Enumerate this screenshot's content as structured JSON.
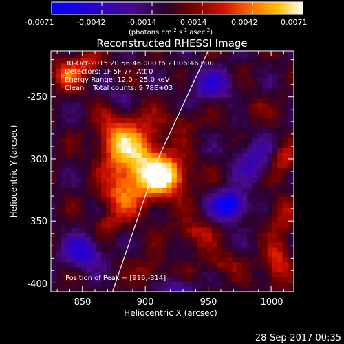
{
  "chart_data": {
    "type": "heatmap",
    "title": "Reconstructed RHESSI Image",
    "xlabel": "Heliocentric X (arcsec)",
    "ylabel": "Heliocentric Y (arcsec)",
    "xlim": [
      825,
      1018
    ],
    "ylim": [
      -407,
      -213
    ],
    "xticks": [
      850,
      900,
      950,
      1000
    ],
    "yticks": [
      -250,
      -300,
      -350,
      -400
    ],
    "colorbar": {
      "min": -0.0071,
      "max": 0.0071,
      "ticks": [
        "-0.0071",
        "-0.0042",
        "-0.0014",
        "0.0014",
        "0.0042",
        "0.0071"
      ],
      "label_main": "(photons cm",
      "label_sup1": "-2",
      "label_mid1": " s",
      "label_sup2": "-1",
      "label_mid2": " asec",
      "label_sup3": "-2",
      "label_end": ")"
    },
    "annotations": [
      "30-Oct-2015 20:56:46.000 to 21:06:46.000",
      "Detectors: 1F 5F 7F, Att 0",
      "Energy Range: 12.0 - 25.0 keV",
      "Clean    Total counts: 9.78E+03"
    ],
    "peak_label": "Position of Peak = [916,-314]",
    "peak": {
      "x": 916,
      "y": -314,
      "value": 0.0071
    },
    "limb_points": [
      [
        874,
        -407
      ],
      [
        910,
        -300
      ],
      [
        950,
        -213
      ]
    ],
    "sources": [
      {
        "x": 916,
        "y": -314,
        "amp": 1.0,
        "sx": 12,
        "sy": 11
      },
      {
        "x": 895,
        "y": -300,
        "amp": 0.8,
        "sx": 14,
        "sy": 22
      },
      {
        "x": 876,
        "y": -285,
        "amp": 0.55,
        "sx": 10,
        "sy": 16
      },
      {
        "x": 880,
        "y": -330,
        "amp": 0.45,
        "sx": 11,
        "sy": 12
      },
      {
        "x": 838,
        "y": -232,
        "amp": 0.55,
        "sx": 9,
        "sy": 8
      },
      {
        "x": 855,
        "y": -222,
        "amp": 0.4,
        "sx": 8,
        "sy": 6
      },
      {
        "x": 1010,
        "y": -300,
        "amp": 0.45,
        "sx": 6,
        "sy": 8
      },
      {
        "x": 1008,
        "y": -345,
        "amp": 0.4,
        "sx": 7,
        "sy": 10
      },
      {
        "x": 1005,
        "y": -385,
        "amp": 0.5,
        "sx": 7,
        "sy": 12
      },
      {
        "x": 940,
        "y": -360,
        "amp": 0.38,
        "sx": 10,
        "sy": 8
      },
      {
        "x": 960,
        "y": -385,
        "amp": 0.3,
        "sx": 10,
        "sy": 7
      },
      {
        "x": 905,
        "y": -390,
        "amp": 0.3,
        "sx": 9,
        "sy": 7
      },
      {
        "x": 870,
        "y": -352,
        "amp": 0.25,
        "sx": 7,
        "sy": 6
      },
      {
        "x": 985,
        "y": -260,
        "amp": 0.22,
        "sx": 8,
        "sy": 6
      },
      {
        "x": 930,
        "y": -270,
        "amp": 0.25,
        "sx": 8,
        "sy": 7
      },
      {
        "x": 967,
        "y": -337,
        "amp": -0.95,
        "sx": 9,
        "sy": 8
      },
      {
        "x": 850,
        "y": -375,
        "amp": -0.65,
        "sx": 10,
        "sy": 9
      },
      {
        "x": 952,
        "y": -240,
        "amp": -0.5,
        "sx": 12,
        "sy": 9
      },
      {
        "x": 985,
        "y": -300,
        "amp": -0.45,
        "sx": 10,
        "sy": 12
      },
      {
        "x": 925,
        "y": -405,
        "amp": -0.4,
        "sx": 10,
        "sy": 6
      },
      {
        "x": 880,
        "y": -250,
        "amp": -0.3,
        "sx": 8,
        "sy": 8
      }
    ]
  },
  "footer": {
    "timestamp": "28-Sep-2017 00:35"
  }
}
